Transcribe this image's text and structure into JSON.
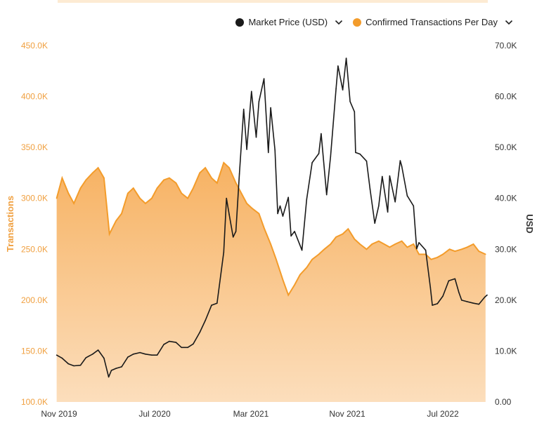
{
  "colors": {
    "price": "#1a1a1a",
    "transactions": "#f39c2b",
    "transactions_fill": "#f8c48a",
    "left_axis": "#f0a040",
    "right_axis": "#333333"
  },
  "legend": {
    "price_label": "Market Price (USD)",
    "transactions_label": "Confirmed Transactions Per Day",
    "chevron_icon": "chevron-down-icon"
  },
  "chart_data": {
    "type": "line",
    "title": "",
    "x_ticks": [
      "Nov 2019",
      "Jul 2020",
      "Mar 2021",
      "Nov 2021",
      "Jul 2022"
    ],
    "x_range": [
      "2019-10-31",
      "2022-11-05"
    ],
    "y_left": {
      "label": "Transactions",
      "range": [
        100000,
        450000
      ],
      "ticks": [
        "100.0K",
        "150.0K",
        "200.0K",
        "250.0K",
        "300.0K",
        "350.0K",
        "400.0K",
        "450.0K"
      ]
    },
    "y_right": {
      "label": "USD",
      "range": [
        0,
        70000
      ],
      "ticks": [
        "0.00",
        "10.0K",
        "20.0K",
        "30.0K",
        "40.0K",
        "50.0K",
        "60.0K",
        "70.0K"
      ]
    },
    "series": [
      {
        "name": "Confirmed Transactions Per Day",
        "axis": "left",
        "type": "area",
        "points": [
          [
            "2019-11-01",
            300000
          ],
          [
            "2019-11-15",
            320000
          ],
          [
            "2019-12-01",
            305000
          ],
          [
            "2019-12-15",
            295000
          ],
          [
            "2020-01-01",
            310000
          ],
          [
            "2020-01-15",
            318000
          ],
          [
            "2020-02-01",
            325000
          ],
          [
            "2020-02-15",
            330000
          ],
          [
            "2020-03-01",
            320000
          ],
          [
            "2020-03-15",
            265000
          ],
          [
            "2020-04-01",
            278000
          ],
          [
            "2020-04-15",
            285000
          ],
          [
            "2020-05-01",
            305000
          ],
          [
            "2020-05-15",
            310000
          ],
          [
            "2020-06-01",
            300000
          ],
          [
            "2020-06-15",
            295000
          ],
          [
            "2020-07-01",
            300000
          ],
          [
            "2020-07-15",
            310000
          ],
          [
            "2020-08-01",
            318000
          ],
          [
            "2020-08-15",
            320000
          ],
          [
            "2020-09-01",
            315000
          ],
          [
            "2020-09-15",
            305000
          ],
          [
            "2020-10-01",
            300000
          ],
          [
            "2020-10-15",
            310000
          ],
          [
            "2020-11-01",
            325000
          ],
          [
            "2020-11-15",
            330000
          ],
          [
            "2020-12-01",
            320000
          ],
          [
            "2020-12-15",
            315000
          ],
          [
            "2021-01-01",
            335000
          ],
          [
            "2021-01-15",
            330000
          ],
          [
            "2021-02-01",
            315000
          ],
          [
            "2021-02-15",
            305000
          ],
          [
            "2021-03-01",
            295000
          ],
          [
            "2021-03-15",
            290000
          ],
          [
            "2021-04-01",
            285000
          ],
          [
            "2021-04-15",
            270000
          ],
          [
            "2021-05-01",
            255000
          ],
          [
            "2021-05-15",
            240000
          ],
          [
            "2021-06-01",
            220000
          ],
          [
            "2021-06-15",
            205000
          ],
          [
            "2021-07-01",
            215000
          ],
          [
            "2021-07-15",
            225000
          ],
          [
            "2021-08-01",
            232000
          ],
          [
            "2021-08-15",
            240000
          ],
          [
            "2021-09-01",
            245000
          ],
          [
            "2021-09-15",
            250000
          ],
          [
            "2021-10-01",
            255000
          ],
          [
            "2021-10-15",
            262000
          ],
          [
            "2021-11-01",
            265000
          ],
          [
            "2021-11-15",
            270000
          ],
          [
            "2021-12-01",
            260000
          ],
          [
            "2021-12-15",
            255000
          ],
          [
            "2022-01-01",
            250000
          ],
          [
            "2022-01-15",
            255000
          ],
          [
            "2022-02-01",
            258000
          ],
          [
            "2022-02-15",
            255000
          ],
          [
            "2022-03-01",
            252000
          ],
          [
            "2022-03-15",
            255000
          ],
          [
            "2022-04-01",
            258000
          ],
          [
            "2022-04-15",
            252000
          ],
          [
            "2022-05-01",
            255000
          ],
          [
            "2022-05-15",
            245000
          ],
          [
            "2022-06-01",
            245000
          ],
          [
            "2022-06-15",
            240000
          ],
          [
            "2022-07-01",
            242000
          ],
          [
            "2022-07-15",
            245000
          ],
          [
            "2022-08-01",
            250000
          ],
          [
            "2022-08-15",
            248000
          ],
          [
            "2022-09-01",
            250000
          ],
          [
            "2022-09-15",
            252000
          ],
          [
            "2022-10-01",
            255000
          ],
          [
            "2022-10-15",
            248000
          ],
          [
            "2022-11-01",
            245000
          ]
        ]
      },
      {
        "name": "Market Price (USD)",
        "axis": "right",
        "type": "line",
        "points": [
          [
            "2019-11-01",
            9200
          ],
          [
            "2019-11-15",
            8600
          ],
          [
            "2019-12-01",
            7500
          ],
          [
            "2019-12-15",
            7100
          ],
          [
            "2020-01-01",
            7200
          ],
          [
            "2020-01-15",
            8700
          ],
          [
            "2020-02-01",
            9400
          ],
          [
            "2020-02-15",
            10200
          ],
          [
            "2020-03-01",
            8600
          ],
          [
            "2020-03-13",
            4900
          ],
          [
            "2020-03-20",
            6200
          ],
          [
            "2020-04-01",
            6600
          ],
          [
            "2020-04-15",
            6900
          ],
          [
            "2020-05-01",
            8800
          ],
          [
            "2020-05-15",
            9400
          ],
          [
            "2020-06-01",
            9700
          ],
          [
            "2020-06-15",
            9400
          ],
          [
            "2020-07-01",
            9200
          ],
          [
            "2020-07-15",
            9200
          ],
          [
            "2020-08-01",
            11300
          ],
          [
            "2020-08-15",
            11900
          ],
          [
            "2020-09-01",
            11700
          ],
          [
            "2020-09-15",
            10700
          ],
          [
            "2020-10-01",
            10700
          ],
          [
            "2020-10-15",
            11400
          ],
          [
            "2020-11-01",
            13700
          ],
          [
            "2020-11-15",
            16000
          ],
          [
            "2020-12-01",
            19000
          ],
          [
            "2020-12-15",
            19400
          ],
          [
            "2021-01-01",
            29400
          ],
          [
            "2021-01-08",
            40000
          ],
          [
            "2021-01-15",
            36800
          ],
          [
            "2021-01-25",
            32400
          ],
          [
            "2021-02-01",
            33500
          ],
          [
            "2021-02-10",
            44800
          ],
          [
            "2021-02-21",
            57500
          ],
          [
            "2021-03-01",
            49600
          ],
          [
            "2021-03-13",
            61000
          ],
          [
            "2021-03-25",
            52000
          ],
          [
            "2021-04-01",
            59000
          ],
          [
            "2021-04-14",
            63500
          ],
          [
            "2021-04-25",
            49000
          ],
          [
            "2021-05-01",
            57800
          ],
          [
            "2021-05-12",
            49500
          ],
          [
            "2021-05-19",
            37000
          ],
          [
            "2021-05-25",
            38500
          ],
          [
            "2021-06-01",
            36500
          ],
          [
            "2021-06-15",
            40200
          ],
          [
            "2021-06-22",
            32600
          ],
          [
            "2021-07-01",
            33500
          ],
          [
            "2021-07-20",
            29800
          ],
          [
            "2021-08-01",
            39800
          ],
          [
            "2021-08-15",
            47000
          ],
          [
            "2021-09-01",
            48800
          ],
          [
            "2021-09-07",
            52700
          ],
          [
            "2021-09-21",
            40700
          ],
          [
            "2021-10-01",
            48200
          ],
          [
            "2021-10-15",
            61500
          ],
          [
            "2021-10-20",
            66000
          ],
          [
            "2021-11-01",
            61300
          ],
          [
            "2021-11-10",
            67500
          ],
          [
            "2021-11-20",
            59000
          ],
          [
            "2021-12-01",
            57000
          ],
          [
            "2021-12-04",
            49000
          ],
          [
            "2021-12-15",
            48700
          ],
          [
            "2022-01-01",
            47300
          ],
          [
            "2022-01-10",
            41800
          ],
          [
            "2022-01-22",
            35100
          ],
          [
            "2022-02-01",
            38500
          ],
          [
            "2022-02-10",
            44300
          ],
          [
            "2022-02-24",
            37300
          ],
          [
            "2022-03-01",
            44400
          ],
          [
            "2022-03-15",
            39300
          ],
          [
            "2022-03-28",
            47400
          ],
          [
            "2022-04-01",
            46300
          ],
          [
            "2022-04-15",
            40500
          ],
          [
            "2022-05-01",
            38500
          ],
          [
            "2022-05-09",
            30100
          ],
          [
            "2022-05-15",
            31300
          ],
          [
            "2022-06-01",
            29800
          ],
          [
            "2022-06-13",
            22500
          ],
          [
            "2022-06-18",
            19000
          ],
          [
            "2022-07-01",
            19300
          ],
          [
            "2022-07-15",
            20800
          ],
          [
            "2022-07-30",
            23800
          ],
          [
            "2022-08-15",
            24200
          ],
          [
            "2022-08-25",
            21500
          ],
          [
            "2022-09-01",
            20000
          ],
          [
            "2022-09-15",
            19700
          ],
          [
            "2022-10-01",
            19400
          ],
          [
            "2022-10-15",
            19200
          ],
          [
            "2022-10-30",
            20600
          ],
          [
            "2022-11-05",
            21000
          ]
        ]
      }
    ]
  }
}
